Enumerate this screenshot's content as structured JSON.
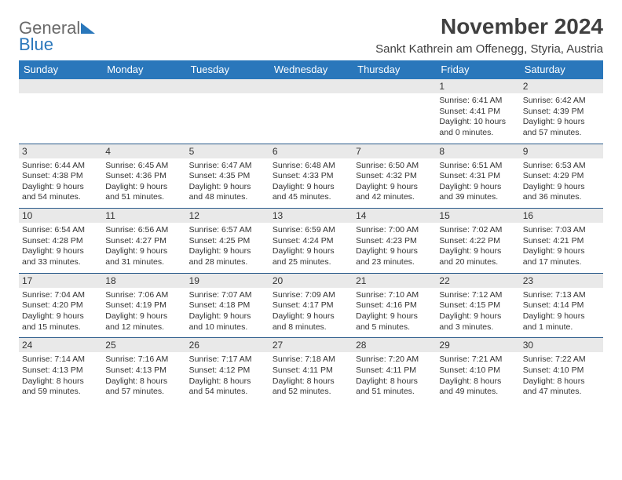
{
  "logo": {
    "part1": "General",
    "part2": "Blue"
  },
  "title": "November 2024",
  "location": "Sankt Kathrein am Offenegg, Styria, Austria",
  "colors": {
    "header_bg": "#2a77bb",
    "header_fg": "#ffffff",
    "shade_bg": "#e9e9e9",
    "rule": "#2a5a8a",
    "text": "#333333",
    "logo_gray": "#6a6a6a",
    "logo_blue": "#2a77bb",
    "page_bg": "#ffffff"
  },
  "typography": {
    "title_fontsize": 28,
    "location_fontsize": 15,
    "th_fontsize": 13,
    "daynum_fontsize": 12,
    "body_fontsize": 10.5
  },
  "dayNames": [
    "Sunday",
    "Monday",
    "Tuesday",
    "Wednesday",
    "Thursday",
    "Friday",
    "Saturday"
  ],
  "weeks": [
    [
      null,
      null,
      null,
      null,
      null,
      {
        "n": "1",
        "sunrise": "Sunrise: 6:41 AM",
        "sunset": "Sunset: 4:41 PM",
        "daylight": "Daylight: 10 hours and 0 minutes."
      },
      {
        "n": "2",
        "sunrise": "Sunrise: 6:42 AM",
        "sunset": "Sunset: 4:39 PM",
        "daylight": "Daylight: 9 hours and 57 minutes."
      }
    ],
    [
      {
        "n": "3",
        "sunrise": "Sunrise: 6:44 AM",
        "sunset": "Sunset: 4:38 PM",
        "daylight": "Daylight: 9 hours and 54 minutes."
      },
      {
        "n": "4",
        "sunrise": "Sunrise: 6:45 AM",
        "sunset": "Sunset: 4:36 PM",
        "daylight": "Daylight: 9 hours and 51 minutes."
      },
      {
        "n": "5",
        "sunrise": "Sunrise: 6:47 AM",
        "sunset": "Sunset: 4:35 PM",
        "daylight": "Daylight: 9 hours and 48 minutes."
      },
      {
        "n": "6",
        "sunrise": "Sunrise: 6:48 AM",
        "sunset": "Sunset: 4:33 PM",
        "daylight": "Daylight: 9 hours and 45 minutes."
      },
      {
        "n": "7",
        "sunrise": "Sunrise: 6:50 AM",
        "sunset": "Sunset: 4:32 PM",
        "daylight": "Daylight: 9 hours and 42 minutes."
      },
      {
        "n": "8",
        "sunrise": "Sunrise: 6:51 AM",
        "sunset": "Sunset: 4:31 PM",
        "daylight": "Daylight: 9 hours and 39 minutes."
      },
      {
        "n": "9",
        "sunrise": "Sunrise: 6:53 AM",
        "sunset": "Sunset: 4:29 PM",
        "daylight": "Daylight: 9 hours and 36 minutes."
      }
    ],
    [
      {
        "n": "10",
        "sunrise": "Sunrise: 6:54 AM",
        "sunset": "Sunset: 4:28 PM",
        "daylight": "Daylight: 9 hours and 33 minutes."
      },
      {
        "n": "11",
        "sunrise": "Sunrise: 6:56 AM",
        "sunset": "Sunset: 4:27 PM",
        "daylight": "Daylight: 9 hours and 31 minutes."
      },
      {
        "n": "12",
        "sunrise": "Sunrise: 6:57 AM",
        "sunset": "Sunset: 4:25 PM",
        "daylight": "Daylight: 9 hours and 28 minutes."
      },
      {
        "n": "13",
        "sunrise": "Sunrise: 6:59 AM",
        "sunset": "Sunset: 4:24 PM",
        "daylight": "Daylight: 9 hours and 25 minutes."
      },
      {
        "n": "14",
        "sunrise": "Sunrise: 7:00 AM",
        "sunset": "Sunset: 4:23 PM",
        "daylight": "Daylight: 9 hours and 23 minutes."
      },
      {
        "n": "15",
        "sunrise": "Sunrise: 7:02 AM",
        "sunset": "Sunset: 4:22 PM",
        "daylight": "Daylight: 9 hours and 20 minutes."
      },
      {
        "n": "16",
        "sunrise": "Sunrise: 7:03 AM",
        "sunset": "Sunset: 4:21 PM",
        "daylight": "Daylight: 9 hours and 17 minutes."
      }
    ],
    [
      {
        "n": "17",
        "sunrise": "Sunrise: 7:04 AM",
        "sunset": "Sunset: 4:20 PM",
        "daylight": "Daylight: 9 hours and 15 minutes."
      },
      {
        "n": "18",
        "sunrise": "Sunrise: 7:06 AM",
        "sunset": "Sunset: 4:19 PM",
        "daylight": "Daylight: 9 hours and 12 minutes."
      },
      {
        "n": "19",
        "sunrise": "Sunrise: 7:07 AM",
        "sunset": "Sunset: 4:18 PM",
        "daylight": "Daylight: 9 hours and 10 minutes."
      },
      {
        "n": "20",
        "sunrise": "Sunrise: 7:09 AM",
        "sunset": "Sunset: 4:17 PM",
        "daylight": "Daylight: 9 hours and 8 minutes."
      },
      {
        "n": "21",
        "sunrise": "Sunrise: 7:10 AM",
        "sunset": "Sunset: 4:16 PM",
        "daylight": "Daylight: 9 hours and 5 minutes."
      },
      {
        "n": "22",
        "sunrise": "Sunrise: 7:12 AM",
        "sunset": "Sunset: 4:15 PM",
        "daylight": "Daylight: 9 hours and 3 minutes."
      },
      {
        "n": "23",
        "sunrise": "Sunrise: 7:13 AM",
        "sunset": "Sunset: 4:14 PM",
        "daylight": "Daylight: 9 hours and 1 minute."
      }
    ],
    [
      {
        "n": "24",
        "sunrise": "Sunrise: 7:14 AM",
        "sunset": "Sunset: 4:13 PM",
        "daylight": "Daylight: 8 hours and 59 minutes."
      },
      {
        "n": "25",
        "sunrise": "Sunrise: 7:16 AM",
        "sunset": "Sunset: 4:13 PM",
        "daylight": "Daylight: 8 hours and 57 minutes."
      },
      {
        "n": "26",
        "sunrise": "Sunrise: 7:17 AM",
        "sunset": "Sunset: 4:12 PM",
        "daylight": "Daylight: 8 hours and 54 minutes."
      },
      {
        "n": "27",
        "sunrise": "Sunrise: 7:18 AM",
        "sunset": "Sunset: 4:11 PM",
        "daylight": "Daylight: 8 hours and 52 minutes."
      },
      {
        "n": "28",
        "sunrise": "Sunrise: 7:20 AM",
        "sunset": "Sunset: 4:11 PM",
        "daylight": "Daylight: 8 hours and 51 minutes."
      },
      {
        "n": "29",
        "sunrise": "Sunrise: 7:21 AM",
        "sunset": "Sunset: 4:10 PM",
        "daylight": "Daylight: 8 hours and 49 minutes."
      },
      {
        "n": "30",
        "sunrise": "Sunrise: 7:22 AM",
        "sunset": "Sunset: 4:10 PM",
        "daylight": "Daylight: 8 hours and 47 minutes."
      }
    ]
  ]
}
